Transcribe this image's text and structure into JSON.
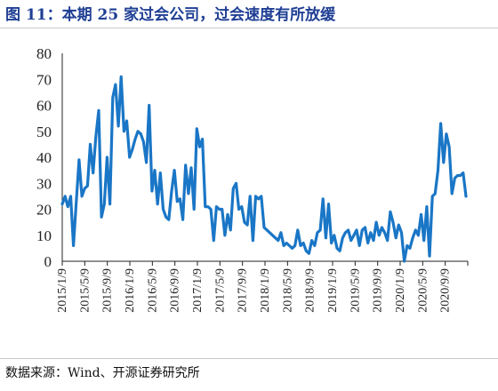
{
  "title": "图 11：本期 25 家过会公司，过会速度有所放缓",
  "source": "数据来源：Wind、开源证券研究所",
  "colors": {
    "title": "#1f3f94",
    "series": "#1a76c6",
    "axis": "#222222"
  },
  "chart_data": {
    "type": "line",
    "title": "图 11：本期 25 家过会公司，过会速度有所放缓",
    "xlabel": "",
    "ylabel": "",
    "ylim": [
      0,
      80
    ],
    "yticks": [
      0,
      10,
      20,
      30,
      40,
      50,
      60,
      70,
      80
    ],
    "grid": false,
    "legend": "none",
    "x_tick_labels": [
      "2015/1/9",
      "2015/5/9",
      "2015/9/9",
      "2016/1/9",
      "2016/5/9",
      "2016/9/9",
      "2017/1/9",
      "2017/5/9",
      "2017/9/9",
      "2018/1/9",
      "2018/5/9",
      "2018/9/9",
      "2019/1/9",
      "2019/5/9",
      "2019/9/9",
      "2020/1/9",
      "2020/5/9",
      "2020/9/9"
    ],
    "series": [
      {
        "values": [
          22,
          25,
          21,
          25,
          6,
          23,
          39,
          25,
          28,
          29,
          45,
          34,
          48,
          58,
          17,
          22,
          40,
          22,
          63,
          68,
          52,
          71,
          50,
          54,
          40,
          43,
          47,
          50,
          49,
          46,
          38,
          60,
          27,
          35,
          22,
          34,
          20,
          17,
          16,
          27,
          35,
          23,
          24,
          16,
          37,
          26,
          36,
          20,
          51,
          44,
          47,
          21,
          21,
          20,
          8,
          21,
          20,
          20,
          10,
          18,
          12,
          28,
          30,
          20,
          21,
          15,
          14,
          25,
          8,
          25,
          24,
          25,
          13,
          12,
          11,
          10,
          9,
          8,
          11,
          6,
          7,
          6,
          5,
          6,
          12,
          6,
          7,
          4,
          3,
          8,
          6,
          11,
          12,
          24,
          9,
          22,
          7,
          10,
          5,
          4,
          9,
          11,
          12,
          8,
          10,
          12,
          6,
          12,
          13,
          7,
          11,
          8,
          15,
          10,
          13,
          11,
          8,
          19,
          15,
          9,
          14,
          11,
          0,
          6,
          5,
          9,
          12,
          10,
          18,
          8,
          21,
          2,
          25,
          26,
          35,
          53,
          38,
          49,
          44,
          26,
          32,
          33,
          33,
          34,
          25
        ]
      }
    ]
  }
}
